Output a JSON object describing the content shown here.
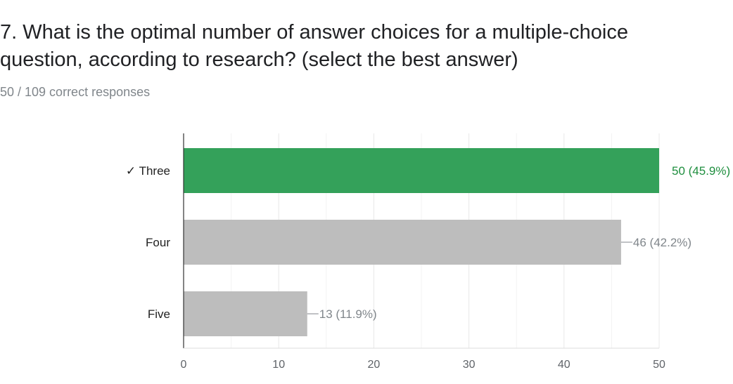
{
  "question": {
    "title": "7. What is the optimal number of answer choices for a multiple-choice question, according to research? (select the best answer)",
    "summary": "50 / 109 correct responses"
  },
  "colors": {
    "correct_bar": "#34a15a",
    "correct_label": "#1e8e3e",
    "other_bar": "#bdbdbd",
    "other_label": "#80868b",
    "axis": "#333333",
    "grid": "#e8e8e8"
  },
  "chart_data": {
    "type": "bar",
    "orientation": "horizontal",
    "categories": [
      "Three",
      "Four",
      "Five"
    ],
    "category_labels": [
      "✓ Three",
      "Four",
      "Five"
    ],
    "values": [
      50,
      46,
      13
    ],
    "value_labels": [
      "50 (45.9%)",
      "46 (42.2%)",
      "13 (11.9%)"
    ],
    "correct": [
      true,
      false,
      false
    ],
    "xlim": [
      0,
      50
    ],
    "xticks": [
      0,
      10,
      20,
      30,
      40,
      50
    ],
    "grid": true
  }
}
